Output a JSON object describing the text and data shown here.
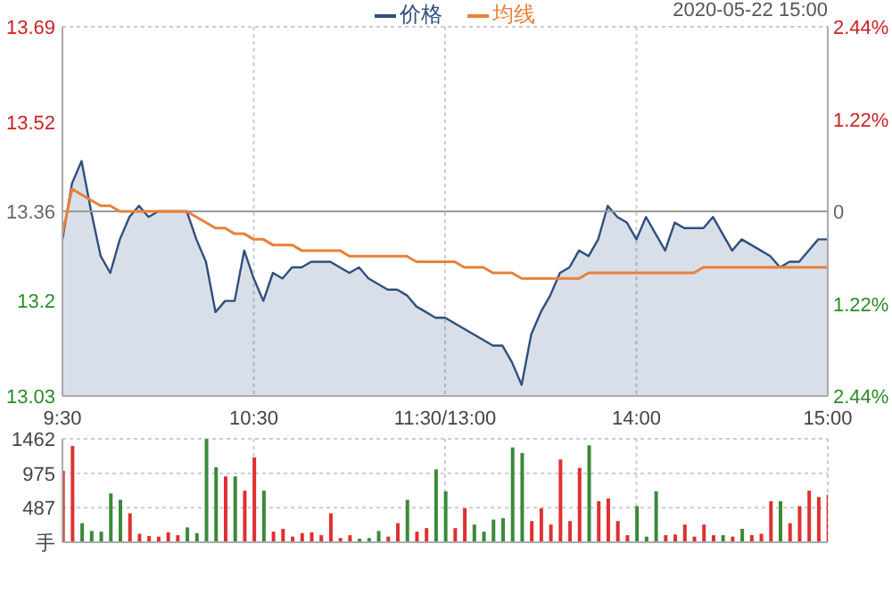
{
  "chart_data": [
    {
      "type": "line",
      "subtitle": "2020-05-22 15:00",
      "legend": "top",
      "grid": true,
      "categories": [
        "9:30",
        null,
        null,
        null,
        null,
        null,
        null,
        null,
        null,
        null,
        null,
        null,
        null,
        null,
        null,
        null,
        null,
        null,
        null,
        null,
        "10:30",
        null,
        null,
        null,
        null,
        null,
        null,
        null,
        null,
        null,
        null,
        null,
        null,
        null,
        null,
        null,
        null,
        null,
        null,
        null,
        "11:30/13:00",
        null,
        null,
        null,
        null,
        null,
        null,
        null,
        null,
        null,
        null,
        null,
        null,
        null,
        null,
        null,
        null,
        null,
        null,
        null,
        "14:00",
        null,
        null,
        null,
        null,
        null,
        null,
        null,
        null,
        null,
        null,
        null,
        null,
        null,
        null,
        null,
        null,
        null,
        null,
        null,
        "15:00"
      ],
      "ylim": [
        13.03,
        13.69
      ],
      "yticks": [
        13.03,
        13.2,
        13.36,
        13.52,
        13.69
      ],
      "y2lim": [
        -2.44,
        2.44
      ],
      "y2ticks": [
        {
          "value": -2.44,
          "label": "2.44%"
        },
        {
          "value": -1.22,
          "label": "1.22%"
        },
        0,
        {
          "value": 1.22,
          "label": "1.22%"
        },
        {
          "value": 2.44,
          "label": "2.44%"
        }
      ],
      "ref_lines": [
        {
          "axis": "y",
          "value": 13.36,
          "color": "#999999"
        }
      ],
      "series": [
        {
          "name": "价格",
          "type": "area",
          "color": "#2f4f7f",
          "values": [
            13.31,
            13.41,
            13.45,
            13.36,
            13.28,
            13.25,
            13.31,
            13.35,
            13.37,
            13.35,
            13.36,
            13.36,
            13.36,
            13.36,
            13.31,
            13.27,
            13.18,
            13.2,
            13.2,
            13.29,
            13.24,
            13.2,
            13.25,
            13.24,
            13.26,
            13.26,
            13.27,
            13.27,
            13.27,
            13.26,
            13.25,
            13.26,
            13.24,
            13.23,
            13.22,
            13.22,
            13.21,
            13.19,
            13.18,
            13.17,
            13.17,
            13.16,
            13.15,
            13.14,
            13.13,
            13.12,
            13.12,
            13.09,
            13.05,
            13.14,
            13.18,
            13.21,
            13.25,
            13.26,
            13.29,
            13.28,
            13.31,
            13.37,
            13.35,
            13.34,
            13.31,
            13.35,
            13.32,
            13.29,
            13.34,
            13.33,
            13.33,
            13.33,
            13.35,
            13.32,
            13.29,
            13.31,
            13.3,
            13.29,
            13.28,
            13.26,
            13.27,
            13.27,
            13.29,
            13.31,
            13.31
          ]
        },
        {
          "name": "均线",
          "type": "line",
          "color": "#e8803a",
          "values": [
            13.32,
            13.4,
            13.39,
            13.38,
            13.37,
            13.37,
            13.36,
            13.36,
            13.36,
            13.36,
            13.36,
            13.36,
            13.36,
            13.36,
            13.35,
            13.34,
            13.33,
            13.33,
            13.32,
            13.32,
            13.31,
            13.31,
            13.3,
            13.3,
            13.3,
            13.29,
            13.29,
            13.29,
            13.29,
            13.29,
            13.28,
            13.28,
            13.28,
            13.28,
            13.28,
            13.28,
            13.28,
            13.27,
            13.27,
            13.27,
            13.27,
            13.27,
            13.26,
            13.26,
            13.26,
            13.25,
            13.25,
            13.25,
            13.24,
            13.24,
            13.24,
            13.24,
            13.24,
            13.24,
            13.24,
            13.25,
            13.25,
            13.25,
            13.25,
            13.25,
            13.25,
            13.25,
            13.25,
            13.25,
            13.25,
            13.25,
            13.25,
            13.26,
            13.26,
            13.26,
            13.26,
            13.26,
            13.26,
            13.26,
            13.26,
            13.26,
            13.26,
            13.26,
            13.26,
            13.26,
            13.26
          ]
        }
      ]
    },
    {
      "type": "bar",
      "grid": true,
      "categories": [
        null,
        null,
        null,
        null,
        null,
        null,
        null,
        null,
        null,
        null,
        null,
        null,
        null,
        null,
        null,
        null,
        null,
        null,
        null,
        null,
        null,
        null,
        null,
        null,
        null,
        null,
        null,
        null,
        null,
        null,
        null,
        null,
        null,
        null,
        null,
        null,
        null,
        null,
        null,
        null,
        null,
        null,
        null,
        null,
        null,
        null,
        null,
        null,
        null,
        null,
        null,
        null,
        null,
        null,
        null,
        null,
        null,
        null,
        null,
        null,
        null,
        null,
        null,
        null,
        null,
        null,
        null,
        null,
        null,
        null,
        null,
        null,
        null,
        null,
        null,
        null,
        null,
        null,
        null,
        null,
        null
      ],
      "ylim": [
        0,
        1462
      ],
      "yticks": [
        {
          "value": 0,
          "label": "手"
        },
        487,
        975,
        1462
      ],
      "values": [
        1010,
        1360,
        270,
        160,
        150,
        690,
        600,
        410,
        120,
        90,
        80,
        140,
        100,
        210,
        130,
        1460,
        1060,
        930,
        930,
        730,
        1200,
        730,
        150,
        190,
        80,
        130,
        140,
        100,
        410,
        60,
        100,
        50,
        60,
        160,
        80,
        270,
        600,
        150,
        200,
        1030,
        720,
        200,
        480,
        250,
        150,
        320,
        340,
        1340,
        1260,
        300,
        480,
        250,
        1170,
        300,
        1050,
        1370,
        580,
        620,
        300,
        100,
        510,
        80,
        720,
        100,
        110,
        250,
        80,
        250,
        100,
        100,
        80,
        190,
        100,
        120,
        580,
        580,
        270,
        510,
        730,
        640,
        670
      ],
      "colors": [
        "#e03030",
        "#e03030",
        "#3a8a3a",
        "#3a8a3a",
        "#3a8a3a",
        "#3a8a3a",
        "#3a8a3a",
        "#e03030",
        "#e03030",
        "#e03030",
        "#e03030",
        "#e03030",
        "#e03030",
        "#3a8a3a",
        "#3a8a3a",
        "#3a8a3a",
        "#3a8a3a",
        "#e03030",
        "#3a8a3a",
        "#e03030",
        "#e03030",
        "#3a8a3a",
        "#e03030",
        "#e03030",
        "#e03030",
        "#e03030",
        "#e03030",
        "#e03030",
        "#e03030",
        "#e03030",
        "#e03030",
        "#3a8a3a",
        "#3a8a3a",
        "#3a8a3a",
        "#e03030",
        "#e03030",
        "#3a8a3a",
        "#e03030",
        "#e03030",
        "#3a8a3a",
        "#3a8a3a",
        "#e03030",
        "#e03030",
        "#3a8a3a",
        "#3a8a3a",
        "#3a8a3a",
        "#3a8a3a",
        "#3a8a3a",
        "#3a8a3a",
        "#e03030",
        "#e03030",
        "#e03030",
        "#e03030",
        "#e03030",
        "#e03030",
        "#3a8a3a",
        "#e03030",
        "#e03030",
        "#e03030",
        "#e03030",
        "#3a8a3a",
        "#3a8a3a",
        "#3a8a3a",
        "#e03030",
        "#e03030",
        "#e03030",
        "#e03030",
        "#e03030",
        "#e03030",
        "#3a8a3a",
        "#e03030",
        "#3a8a3a",
        "#e03030",
        "#e03030",
        "#e03030",
        "#3a8a3a",
        "#e03030",
        "#e03030",
        "#e03030",
        "#e03030",
        "#e03030"
      ]
    }
  ]
}
